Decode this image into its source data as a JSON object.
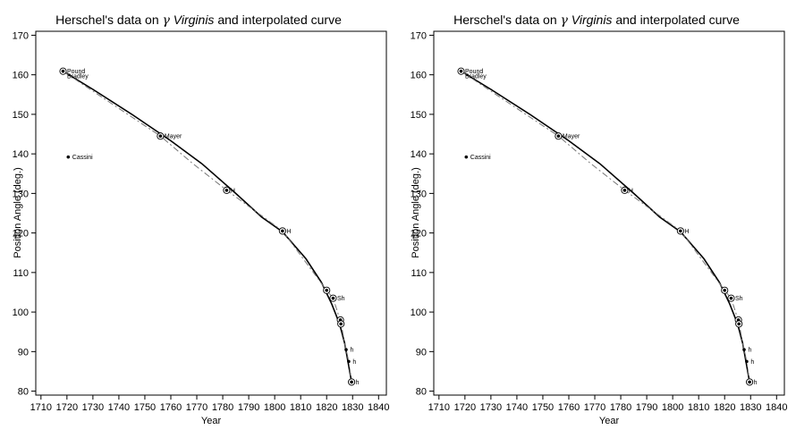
{
  "chart_data": [
    {
      "type": "scatter",
      "title_prefix": "Herschel's data on ",
      "title_greek": "γ",
      "title_star": "Virginis",
      "title_suffix": " and interpolated curve",
      "xlabel": "Year",
      "ylabel": "Position Angle (deg.)",
      "xlim": [
        1708,
        1843
      ],
      "ylim": [
        79,
        171
      ],
      "xticks": [
        1710,
        1720,
        1730,
        1740,
        1750,
        1760,
        1770,
        1780,
        1790,
        1800,
        1810,
        1820,
        1830,
        1840
      ],
      "yticks": [
        80,
        90,
        100,
        110,
        120,
        130,
        140,
        150,
        160,
        170
      ],
      "points": [
        {
          "x": 1718.5,
          "y": 160.9,
          "label": "Pound",
          "circled": true
        },
        {
          "x": 1718.5,
          "y": 160.9,
          "label": "Bradley",
          "circled": false
        },
        {
          "x": 1720.5,
          "y": 139.2,
          "label": "Cassini",
          "circled": false
        },
        {
          "x": 1756.0,
          "y": 144.5,
          "label": "Mayer",
          "circled": true
        },
        {
          "x": 1781.5,
          "y": 130.8,
          "label": "H",
          "circled": true
        },
        {
          "x": 1803.0,
          "y": 120.5,
          "label": "H",
          "circled": true
        },
        {
          "x": 1820.0,
          "y": 105.5,
          "label": "",
          "circled": true
        },
        {
          "x": 1822.5,
          "y": 103.5,
          "label": "Sh",
          "circled": true
        },
        {
          "x": 1825.3,
          "y": 98.0,
          "label": "",
          "circled": true
        },
        {
          "x": 1825.5,
          "y": 97.0,
          "label": "",
          "circled": true
        },
        {
          "x": 1827.5,
          "y": 90.5,
          "label": "h",
          "circled": false
        },
        {
          "x": 1828.5,
          "y": 87.5,
          "label": "h",
          "circled": false
        },
        {
          "x": 1829.6,
          "y": 82.3,
          "label": "h",
          "circled": true
        }
      ],
      "series": [
        {
          "style": "solid",
          "x": [
            1718.5,
            1730,
            1745,
            1760,
            1772,
            1785,
            1795,
            1803,
            1812,
            1818,
            1822,
            1825,
            1827,
            1829.6
          ],
          "y": [
            160.9,
            156.3,
            150.0,
            143.3,
            137.5,
            130.0,
            124.0,
            120.3,
            113.5,
            107.5,
            102.0,
            97.0,
            92.0,
            82.3
          ]
        },
        {
          "style": "dashed",
          "x": [
            1718.5,
            1740,
            1756,
            1768,
            1781.5,
            1803,
            1820,
            1822.5,
            1825.4,
            1827.5,
            1828.5,
            1829.6
          ],
          "y": [
            160.9,
            151.5,
            144.5,
            137.8,
            130.8,
            120.5,
            105.5,
            103.5,
            97.5,
            90.5,
            87.5,
            82.3
          ]
        }
      ]
    },
    {
      "type": "scatter",
      "title_prefix": "Herschel's data on ",
      "title_greek": "γ",
      "title_star": "Virginis",
      "title_suffix": " and interpolated curve",
      "xlabel": "Year",
      "ylabel": "Position Angle (deg.)",
      "xlim": [
        1708,
        1843
      ],
      "ylim": [
        79,
        171
      ],
      "xticks": [
        1710,
        1720,
        1730,
        1740,
        1750,
        1760,
        1770,
        1780,
        1790,
        1800,
        1810,
        1820,
        1830,
        1840
      ],
      "yticks": [
        80,
        90,
        100,
        110,
        120,
        130,
        140,
        150,
        160,
        170
      ],
      "points": [
        {
          "x": 1718.5,
          "y": 160.9,
          "label": "Pound",
          "circled": true
        },
        {
          "x": 1718.5,
          "y": 160.9,
          "label": "Bradley",
          "circled": false
        },
        {
          "x": 1720.5,
          "y": 139.2,
          "label": "Cassini",
          "circled": false
        },
        {
          "x": 1756.0,
          "y": 144.5,
          "label": "Mayer",
          "circled": true
        },
        {
          "x": 1781.5,
          "y": 130.8,
          "label": "H",
          "circled": true
        },
        {
          "x": 1803.0,
          "y": 120.5,
          "label": "H",
          "circled": true
        },
        {
          "x": 1820.0,
          "y": 105.5,
          "label": "",
          "circled": true
        },
        {
          "x": 1822.5,
          "y": 103.5,
          "label": "Sh",
          "circled": true
        },
        {
          "x": 1825.3,
          "y": 98.0,
          "label": "",
          "circled": true
        },
        {
          "x": 1825.5,
          "y": 97.0,
          "label": "",
          "circled": true
        },
        {
          "x": 1827.5,
          "y": 90.5,
          "label": "h",
          "circled": false
        },
        {
          "x": 1828.5,
          "y": 87.5,
          "label": "h",
          "circled": false
        },
        {
          "x": 1829.6,
          "y": 82.3,
          "label": "h",
          "circled": true
        }
      ],
      "series": [
        {
          "style": "solid",
          "x": [
            1718.5,
            1730,
            1745,
            1760,
            1772,
            1785,
            1795,
            1803,
            1812,
            1818,
            1822,
            1825,
            1827,
            1829.6
          ],
          "y": [
            160.9,
            156.3,
            150.0,
            143.3,
            137.5,
            130.0,
            124.0,
            120.3,
            113.5,
            107.5,
            102.0,
            97.0,
            92.0,
            82.3
          ]
        },
        {
          "style": "dashed",
          "x": [
            1718.5,
            1740,
            1756,
            1768,
            1781.5,
            1803,
            1820,
            1822.5,
            1825.4,
            1827.5,
            1828.5,
            1829.6
          ],
          "y": [
            160.9,
            151.5,
            144.5,
            137.8,
            130.8,
            120.5,
            105.5,
            103.5,
            97.5,
            90.5,
            87.5,
            82.3
          ]
        }
      ]
    }
  ]
}
